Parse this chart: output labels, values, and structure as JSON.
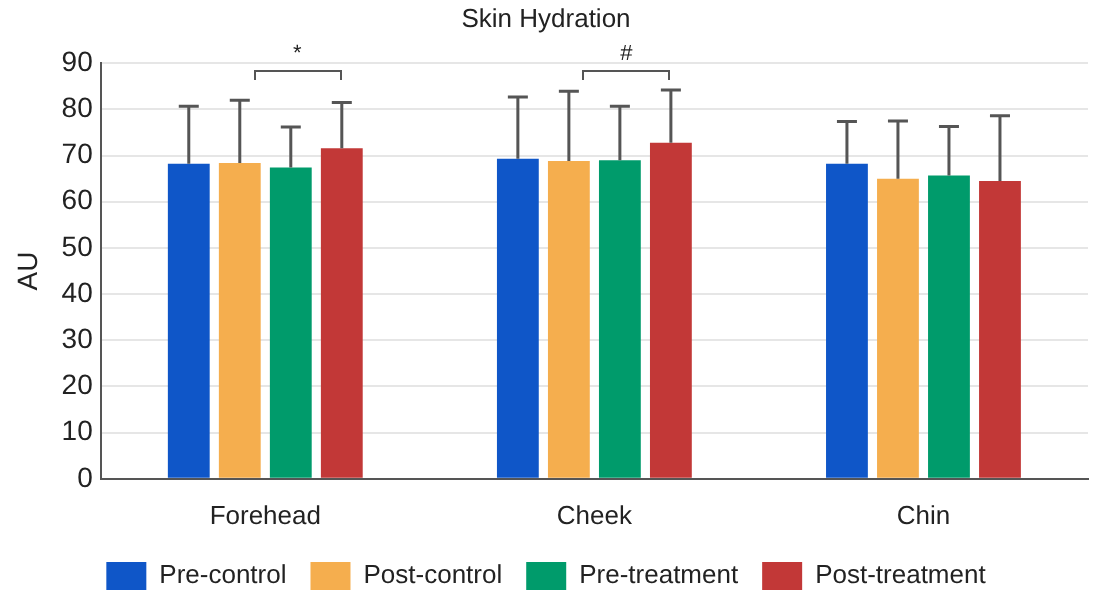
{
  "chart_data": {
    "type": "bar",
    "title": "Skin Hydration",
    "ylabel": "AU",
    "categories": [
      "Forehead",
      "Cheek",
      "Chin"
    ],
    "series": [
      {
        "name": "Pre-control",
        "color": "#0f56c8",
        "values": [
          68.2,
          69.3,
          68.2
        ],
        "errors": [
          [
            68.2,
            80.7
          ],
          [
            69.3,
            82.7
          ],
          [
            68.2,
            77.4
          ]
        ]
      },
      {
        "name": "Post-control",
        "color": "#f5ae4e",
        "values": [
          68.4,
          68.8,
          65.0
        ],
        "errors": [
          [
            68.4,
            82.0
          ],
          [
            68.8,
            83.9
          ],
          [
            65.0,
            77.5
          ]
        ]
      },
      {
        "name": "Pre-treatment",
        "color": "#009b6b",
        "values": [
          67.4,
          69.0,
          65.7
        ],
        "errors": [
          [
            67.4,
            76.2
          ],
          [
            69.0,
            80.7
          ],
          [
            65.7,
            76.3
          ]
        ]
      },
      {
        "name": "Post-treatment",
        "color": "#c23837",
        "values": [
          71.6,
          72.8,
          64.5
        ],
        "errors": [
          [
            71.6,
            81.5
          ],
          [
            72.8,
            84.2
          ],
          [
            64.5,
            78.6
          ]
        ]
      }
    ],
    "ylim": [
      0,
      90
    ],
    "yticks": [
      0,
      10,
      20,
      30,
      40,
      50,
      60,
      70,
      80,
      90
    ],
    "grid": "y",
    "legend": "bottom",
    "annotations": [
      "*",
      "#"
    ]
  }
}
